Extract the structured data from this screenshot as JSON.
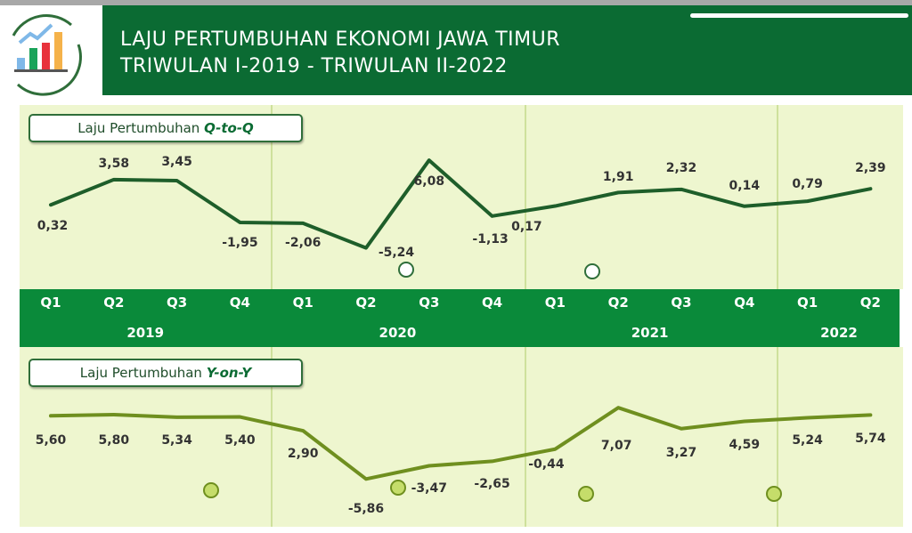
{
  "header": {
    "title_line1": "LAJU PERTUMBUHAN EKONOMI JAWA TIMUR",
    "title_line2": "TRIWULAN I-2019 - TRIWULAN II-2022",
    "logo_icon": "bar-chart-growth-icon"
  },
  "colors": {
    "header": "#0b6b33",
    "band": "#0a8a3a",
    "panel": "#eef6cf",
    "qtoq_line": "#1e5e2a",
    "yony_line": "#6f8f1f"
  },
  "chart_data": [
    {
      "type": "line",
      "title_prefix": "Laju Pertumbuhan ",
      "title_em": "Q-to-Q",
      "categories": [
        "Q1",
        "Q2",
        "Q3",
        "Q4",
        "Q1",
        "Q2",
        "Q3",
        "Q4",
        "Q1",
        "Q2",
        "Q3",
        "Q4",
        "Q1",
        "Q2"
      ],
      "years": [
        "2019",
        "2020",
        "2021",
        "2022"
      ],
      "values": [
        0.32,
        3.58,
        3.45,
        -1.95,
        -2.06,
        -5.24,
        6.08,
        -1.13,
        0.17,
        1.91,
        2.32,
        0.14,
        0.79,
        2.39
      ],
      "labels": [
        "0,32",
        "3,58",
        "3,45",
        "-1,95",
        "-2,06",
        "-5,24",
        "6,08",
        "-1,13",
        "0,17",
        "1,91",
        "2,32",
        "0,14",
        "0,79",
        "2,39"
      ]
    },
    {
      "type": "line",
      "title_prefix": "Laju Pertumbuhan ",
      "title_em": "Y-on-Y",
      "values": [
        5.6,
        5.8,
        5.34,
        5.4,
        2.9,
        -5.86,
        -3.47,
        -2.65,
        -0.44,
        7.07,
        3.27,
        4.59,
        5.24,
        5.74
      ],
      "labels": [
        "5,60",
        "5,80",
        "5,34",
        "5,40",
        "2,90",
        "-5,86",
        "-3,47",
        "-2,65",
        "-0,44",
        "7,07",
        "3,27",
        "4,59",
        "5,24",
        "5,74"
      ]
    }
  ]
}
